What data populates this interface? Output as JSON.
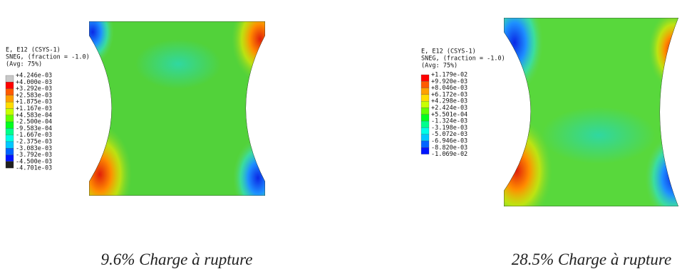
{
  "panels": [
    {
      "legend": {
        "header": [
          "E, E12 (CSYS-1)",
          "SNEG, (fraction = -1.0)",
          "(Avg: 75%)"
        ],
        "entries": [
          "+4.246e-03",
          "+4.000e-03",
          "+3.292e-03",
          "+2.583e-03",
          "+1.875e-03",
          "+1.167e-03",
          "+4.583e-04",
          "-2.500e-04",
          "-9.583e-04",
          "-1.667e-03",
          "-2.375e-03",
          "-3.083e-03",
          "-3.792e-03",
          "-4.500e-03",
          "-4.701e-03"
        ]
      },
      "caption": "9.6% Charge à rupture"
    },
    {
      "legend": {
        "header": [
          "E, E12 (CSYS-1)",
          "SNEG, (fraction = -1.0)",
          "(Avg: 75%)"
        ],
        "entries": [
          "+1.179e-02",
          "+9.920e-03",
          "+8.046e-03",
          "+6.172e-03",
          "+4.298e-03",
          "+2.424e-03",
          "+5.501e-04",
          "-1.324e-03",
          "-3.198e-03",
          "-5.072e-03",
          "-6.946e-03",
          "-8.820e-03",
          "-1.069e-02"
        ]
      },
      "caption": "28.5% Charge à rupture"
    }
  ]
}
